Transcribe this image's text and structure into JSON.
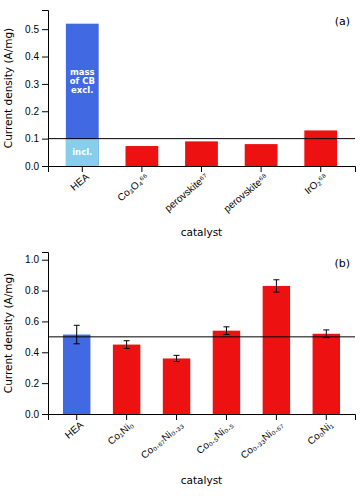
{
  "chart_data": [
    {
      "type": "bar",
      "title": "(a)",
      "categories": [
        "HEA",
        "Co₃O₄⁶⁶",
        "perovskite⁶⁷",
        "perovskite⁶⁸",
        "IrO₂⁶⁸"
      ],
      "values": [
        0.52,
        0.073,
        0.09,
        0.08,
        0.13
      ],
      "colors": [
        "#4169e1",
        "#ee1111",
        "#ee1111",
        "#ee1111",
        "#ee1111"
      ],
      "overlay_values": [
        0.1,
        null,
        null,
        null,
        null
      ],
      "overlay_color": "#87ceeb",
      "reference_line": 0.1,
      "annotations": [
        {
          "text": "mass\nof CB\nexcl.",
          "category": "HEA",
          "y": 0.31
        },
        {
          "text": "incl.",
          "category": "HEA",
          "y": 0.05
        }
      ],
      "x_label": "catalyst",
      "y_label": "Current density (A/mg)",
      "ylim": [
        0,
        0.57
      ],
      "yticks": [
        {
          "value": 0.0,
          "label": "0.0"
        },
        0.1,
        0.2,
        0.3,
        0.4,
        0.5
      ],
      "grid": false
    },
    {
      "type": "bar",
      "title": "(b)",
      "categories": [
        "HEA",
        "Co₁Ni₀",
        "Co₀.₆₇Ni₀.₃₃",
        "Co₀.₅Ni₀.₅",
        "Co₀.₃₃Ni₀.₆₇",
        "Co₀Ni₁"
      ],
      "values": [
        0.515,
        0.45,
        0.36,
        0.54,
        0.83,
        0.52
      ],
      "errors": [
        0.06,
        0.025,
        0.02,
        0.025,
        0.04,
        0.025
      ],
      "colors": [
        "#4169e1",
        "#ee1111",
        "#ee1111",
        "#ee1111",
        "#ee1111",
        "#ee1111"
      ],
      "reference_line": 0.5,
      "x_label": "catalyst",
      "y_label": "Current density (A/mg)",
      "ylim": [
        0,
        1.05
      ],
      "yticks": [
        {
          "value": 0.0,
          "label": "0.0"
        },
        0.2,
        0.4,
        0.6,
        0.8,
        {
          "value": 1.0,
          "label": "1.0"
        }
      ],
      "grid": false
    }
  ]
}
